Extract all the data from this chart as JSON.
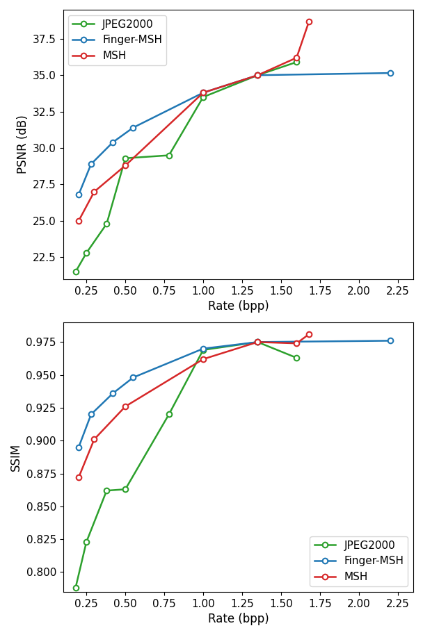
{
  "psnr": {
    "jpeg2000": {
      "rate": [
        0.18,
        0.25,
        0.38,
        0.5,
        0.78,
        1.0,
        1.35,
        1.6
      ],
      "psnr": [
        21.5,
        22.8,
        24.8,
        29.3,
        29.5,
        33.5,
        35.0,
        35.9
      ]
    },
    "finger_msh": {
      "rate": [
        0.2,
        0.28,
        0.42,
        0.55,
        1.0,
        1.35,
        2.2
      ],
      "psnr": [
        26.8,
        28.9,
        30.4,
        31.4,
        33.8,
        35.0,
        35.15
      ]
    },
    "msh": {
      "rate": [
        0.2,
        0.3,
        0.5,
        1.0,
        1.35,
        1.6,
        1.68
      ],
      "psnr": [
        25.0,
        27.0,
        28.8,
        33.8,
        35.0,
        36.2,
        38.7
      ]
    }
  },
  "ssim": {
    "jpeg2000": {
      "rate": [
        0.18,
        0.25,
        0.38,
        0.5,
        0.78,
        1.0,
        1.35,
        1.6
      ],
      "ssim": [
        0.788,
        0.823,
        0.862,
        0.863,
        0.92,
        0.969,
        0.975,
        0.963
      ]
    },
    "finger_msh": {
      "rate": [
        0.2,
        0.28,
        0.42,
        0.55,
        1.0,
        1.35,
        2.2
      ],
      "ssim": [
        0.895,
        0.92,
        0.936,
        0.948,
        0.97,
        0.975,
        0.976
      ]
    },
    "msh": {
      "rate": [
        0.2,
        0.3,
        0.5,
        1.0,
        1.35,
        1.6,
        1.68
      ],
      "ssim": [
        0.872,
        0.901,
        0.926,
        0.962,
        0.975,
        0.974,
        0.981
      ]
    }
  },
  "colors": {
    "jpeg2000": "#2ca02c",
    "finger_msh": "#1f77b4",
    "msh": "#d62728"
  },
  "psnr_ylabel": "PSNR (dB)",
  "ssim_ylabel": "SSIM",
  "xlabel": "Rate (bpp)",
  "psnr_ylim": [
    21.0,
    39.5
  ],
  "ssim_ylim": [
    0.785,
    0.99
  ],
  "xlim": [
    0.1,
    2.35
  ],
  "xticks": [
    0.25,
    0.5,
    0.75,
    1.0,
    1.25,
    1.5,
    1.75,
    2.0,
    2.25
  ]
}
